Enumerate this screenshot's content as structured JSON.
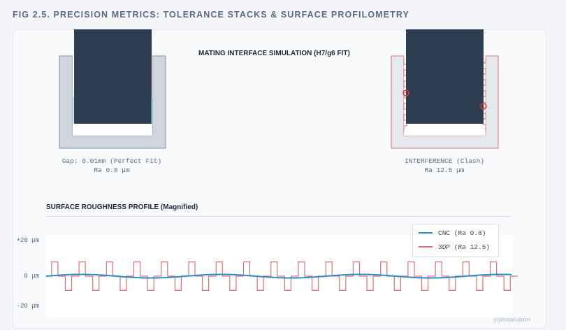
{
  "figure": {
    "title": "FIG 2.5. PRECISION METRICS: TOLERANCE STACKS & SURFACE PROFILOMETRY"
  },
  "mating": {
    "title": "MATING INTERFACE SIMULATION (H7/g6 FIT)",
    "left": {
      "line1": "Gap: 0.01mm (Perfect Fit)",
      "line2": "Ra 0.8 μm"
    },
    "right": {
      "line1": "INTERFERENCE (Clash)",
      "line2": "Ra 12.5 μm"
    }
  },
  "roughness": {
    "title": "SURFACE ROUGHNESS PROFILE (Magnified)",
    "y_ticks": [
      "+20 μm",
      "0 μm",
      "-20 μm"
    ]
  },
  "colors": {
    "cnc": "#2a8ccc",
    "dp3": "#e26f6f",
    "part": "#2d3e50",
    "housing": "#cfd6e0"
  },
  "watermark": "yijinsolution",
  "chart_data": {
    "type": "line",
    "title": "SURFACE ROUGHNESS PROFILE (Magnified)",
    "xlabel": "",
    "ylabel": "",
    "ylim": [
      -20,
      20
    ],
    "y_ticks": [
      20,
      0,
      -20
    ],
    "legend_position": "top-right",
    "series": [
      {
        "name": "CNC (Ra 0.8)",
        "shape": "smooth wave",
        "amplitude_um": 1,
        "period_fraction_of_width": 0.3
      },
      {
        "name": "3DP (Ra 12.5)",
        "shape": "square wave",
        "amplitude_um": 8,
        "cycles": 17
      }
    ]
  }
}
